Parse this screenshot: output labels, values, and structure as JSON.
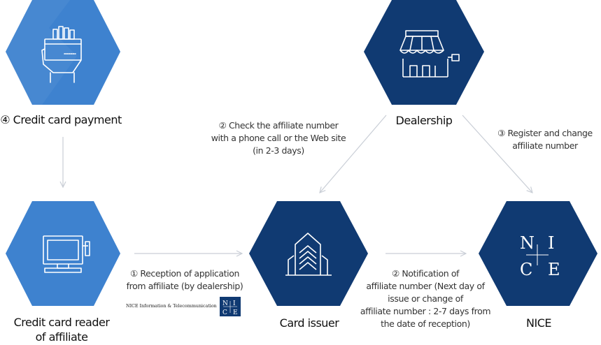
{
  "colors": {
    "light_blue": "#3e82cf",
    "dark_blue": "#103a72",
    "arrow": "#c9ced6"
  },
  "nodes": {
    "payment": {
      "label": "④ Credit card payment",
      "icon": "card-in-hand-icon"
    },
    "dealership": {
      "label": "Dealership",
      "icon": "storefront-icon"
    },
    "reader": {
      "label_line1": "Credit card reader",
      "label_line2": "of affiliate",
      "icon": "card-terminal-icon"
    },
    "issuer": {
      "label": "Card issuer",
      "icon": "building-icon"
    },
    "nice": {
      "label": "NICE",
      "logo_letters": [
        "N",
        "I",
        "C",
        "E"
      ]
    }
  },
  "notes": {
    "check": {
      "line1": "②  Check the affiliate number",
      "line2": "with a phone call or the Web site",
      "line3": "(in 2-3 days)"
    },
    "register": {
      "line1": "③ Register and change",
      "line2": "affiliate number"
    },
    "reception": {
      "line1": "① Reception of application",
      "line2": "from affiliate (by dealership)"
    },
    "notification": {
      "line1": "② Notification of",
      "line2": "affiliate number (Next day of",
      "line3": "issue or change of",
      "line4": "affiliate number : 2-7 days from",
      "line5": "the date of reception)"
    }
  },
  "brand": {
    "text": "NICE Information & Telecommunication",
    "logo_letters": [
      "N",
      "I",
      "C",
      "E"
    ]
  }
}
